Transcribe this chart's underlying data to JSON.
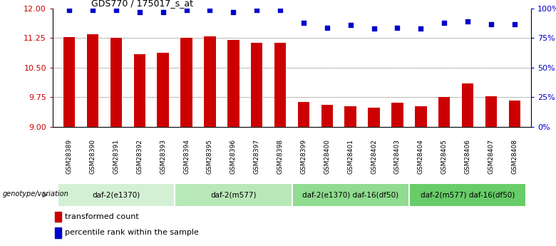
{
  "title": "GDS770 / 175017_s_at",
  "samples": [
    "GSM28389",
    "GSM28390",
    "GSM28391",
    "GSM28392",
    "GSM28393",
    "GSM28394",
    "GSM28395",
    "GSM28396",
    "GSM28397",
    "GSM28398",
    "GSM28399",
    "GSM28400",
    "GSM28401",
    "GSM28402",
    "GSM28403",
    "GSM28404",
    "GSM28405",
    "GSM28406",
    "GSM28407",
    "GSM28408"
  ],
  "bar_values": [
    11.28,
    11.35,
    11.25,
    10.85,
    10.87,
    11.25,
    11.3,
    11.2,
    11.13,
    11.14,
    9.63,
    9.55,
    9.52,
    9.48,
    9.61,
    9.52,
    9.75,
    10.1,
    9.78,
    9.67
  ],
  "dot_values": [
    99,
    99,
    99,
    97,
    97,
    99,
    99,
    97,
    99,
    99,
    88,
    84,
    86,
    83,
    84,
    83,
    88,
    89,
    87,
    87
  ],
  "bar_color": "#cc0000",
  "dot_color": "#0000cc",
  "ylim_left": [
    9,
    12
  ],
  "ylim_right": [
    0,
    100
  ],
  "yticks_left": [
    9,
    9.75,
    10.5,
    11.25,
    12
  ],
  "yticks_right": [
    0,
    25,
    50,
    75,
    100
  ],
  "ytick_labels_right": [
    "0%",
    "25%",
    "50%",
    "75%",
    "100%"
  ],
  "groups": [
    {
      "label": "daf-2(e1370)",
      "start": 0,
      "end": 4
    },
    {
      "label": "daf-2(m577)",
      "start": 5,
      "end": 9
    },
    {
      "label": "daf-2(e1370) daf-16(df50)",
      "start": 10,
      "end": 14
    },
    {
      "label": "daf-2(m577) daf-16(df50)",
      "start": 15,
      "end": 19
    }
  ],
  "group_colors": [
    "#d4f0d4",
    "#b8e8b8",
    "#90dc90",
    "#68cc68"
  ],
  "group_label": "genotype/variation",
  "legend_bar_label": "transformed count",
  "legend_dot_label": "percentile rank within the sample",
  "background_color": "#ffffff",
  "xtick_bg_color": "#c8c8c8",
  "tick_color_left": "#cc0000",
  "tick_color_right": "#0000cc",
  "bar_width": 0.5
}
